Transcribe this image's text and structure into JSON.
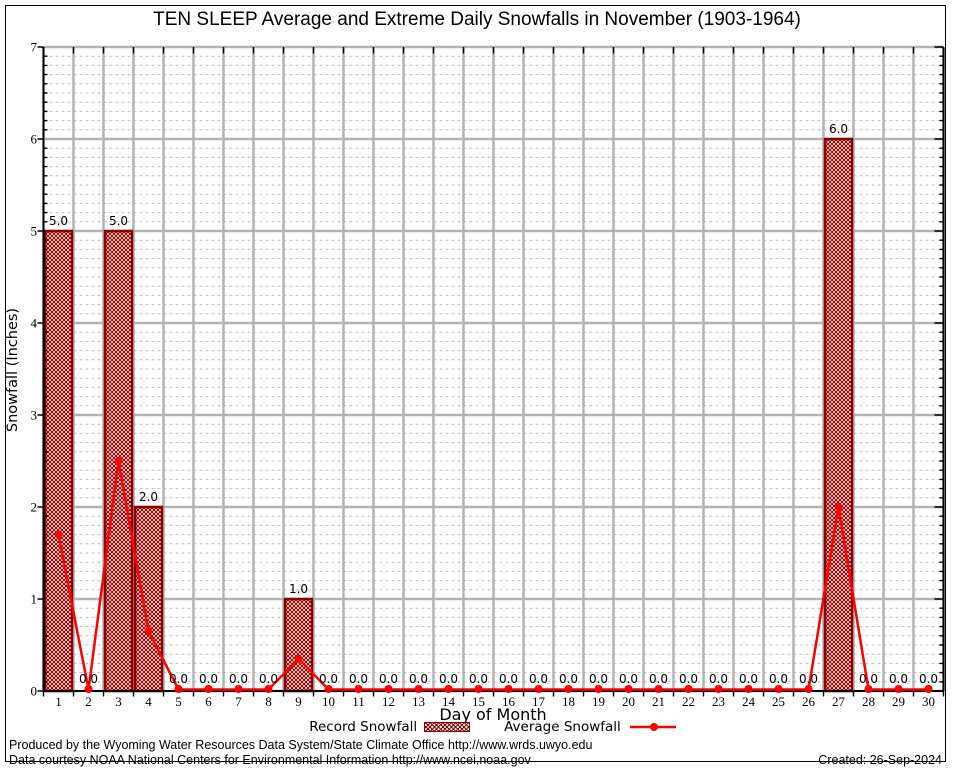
{
  "title": "TEN SLEEP Average and Extreme Daily Snowfalls in November (1903-1964)",
  "legend": {
    "record_label": "Record Snowfall",
    "average_label": "Average Snowfall"
  },
  "footer": {
    "line1": "Produced by the Wyoming Water Resources Data System/State Climate Office http://www.wrds.uwyo.edu",
    "line2": "Data courtesy NOAA National Centers for Environmental Information http://www.ncei.noaa.gov",
    "created": "Created: 26-Sep-2024"
  },
  "chart_data": {
    "type": "bar",
    "title": "TEN SLEEP Average and Extreme Daily Snowfalls in November (1903-1964)",
    "xlabel": "Day of Month",
    "ylabel": "Snowfall (Inches)",
    "ylim": [
      0,
      7
    ],
    "y_ticks": [
      0,
      1,
      2,
      3,
      4,
      5,
      6,
      7
    ],
    "y_minor_step": 0.1,
    "grid": "on",
    "legend_position": "bottom",
    "categories": [
      1,
      2,
      3,
      4,
      5,
      6,
      7,
      8,
      9,
      10,
      11,
      12,
      13,
      14,
      15,
      16,
      17,
      18,
      19,
      20,
      21,
      22,
      23,
      24,
      25,
      26,
      27,
      28,
      29,
      30
    ],
    "series": [
      {
        "name": "Record Snowfall",
        "type": "bar",
        "values": [
          5,
          0,
          5,
          2,
          0,
          0,
          0,
          0,
          1,
          0,
          0,
          0,
          0,
          0,
          0,
          0,
          0,
          0,
          0,
          0,
          0,
          0,
          0,
          0,
          0,
          0,
          6,
          0,
          0,
          0
        ]
      },
      {
        "name": "Average Snowfall",
        "type": "line",
        "values": [
          1.7,
          0,
          2.5,
          0.65,
          0,
          0,
          0,
          0,
          0.35,
          0,
          0,
          0,
          0,
          0,
          0,
          0,
          0,
          0,
          0,
          0,
          0,
          0,
          0,
          0,
          0,
          0,
          2.0,
          0,
          0,
          0
        ]
      }
    ],
    "bar_value_labels": [
      "5.0",
      "0.0",
      "5.0",
      "2.0",
      "0.0",
      "0.0",
      "0.0",
      "0.0",
      "1.0",
      "0.0",
      "0.0",
      "0.0",
      "0.0",
      "0.0",
      "0.0",
      "0.0",
      "0.0",
      "0.0",
      "0.0",
      "0.0",
      "0.0",
      "0.0",
      "0.0",
      "0.0",
      "0.0",
      "0.0",
      "6.0",
      "0.0",
      "0.0",
      "0.0"
    ],
    "colors": {
      "bar_edge": "#8e0000",
      "bar_hatch": "#8e0000",
      "line": "#ff0000",
      "marker": "#ff0000",
      "grid_major": "#b3b3b3",
      "grid_minor": "#bdbdbd",
      "axis": "#000000"
    }
  }
}
